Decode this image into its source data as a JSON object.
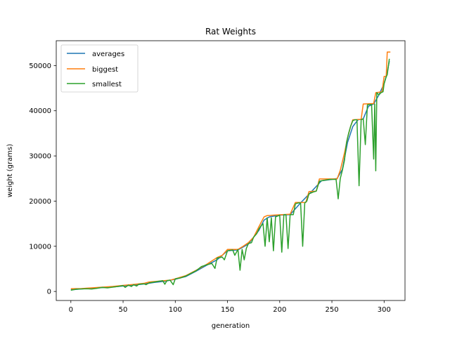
{
  "chart_data": {
    "type": "line",
    "title": "Rat Weights",
    "xlabel": "generation",
    "ylabel": "weight (grams)",
    "xlim": [
      -14,
      320
    ],
    "ylim": [
      -2000,
      55500
    ],
    "xticks": [
      0,
      50,
      100,
      150,
      200,
      250,
      300
    ],
    "yticks": [
      0,
      10000,
      20000,
      30000,
      40000,
      50000
    ],
    "legend": "top-left",
    "series": [
      {
        "name": "averages",
        "color": "#1f77b4",
        "points": [
          [
            0,
            350
          ],
          [
            10,
            560
          ],
          [
            20,
            700
          ],
          [
            30,
            850
          ],
          [
            40,
            1000
          ],
          [
            50,
            1200
          ],
          [
            60,
            1400
          ],
          [
            70,
            1650
          ],
          [
            80,
            2000
          ],
          [
            90,
            2250
          ],
          [
            100,
            2700
          ],
          [
            110,
            3300
          ],
          [
            120,
            4500
          ],
          [
            130,
            5800
          ],
          [
            140,
            7000
          ],
          [
            150,
            9000
          ],
          [
            160,
            9200
          ],
          [
            170,
            10500
          ],
          [
            180,
            13500
          ],
          [
            185,
            15800
          ],
          [
            190,
            16500
          ],
          [
            200,
            16900
          ],
          [
            210,
            17000
          ],
          [
            220,
            19600
          ],
          [
            230,
            22000
          ],
          [
            240,
            24500
          ],
          [
            250,
            24800
          ],
          [
            255,
            25000
          ],
          [
            260,
            27000
          ],
          [
            265,
            33000
          ],
          [
            270,
            36500
          ],
          [
            275,
            38000
          ],
          [
            280,
            38200
          ],
          [
            285,
            41000
          ],
          [
            290,
            41500
          ],
          [
            295,
            43500
          ],
          [
            300,
            46000
          ],
          [
            303,
            48500
          ],
          [
            305,
            51000
          ]
        ]
      },
      {
        "name": "biggest",
        "color": "#ff7f0e",
        "points": [
          [
            0,
            600
          ],
          [
            10,
            650
          ],
          [
            20,
            800
          ],
          [
            30,
            950
          ],
          [
            40,
            1100
          ],
          [
            50,
            1350
          ],
          [
            60,
            1550
          ],
          [
            70,
            1800
          ],
          [
            75,
            2100
          ],
          [
            85,
            2300
          ],
          [
            95,
            2500
          ],
          [
            100,
            2800
          ],
          [
            110,
            3500
          ],
          [
            120,
            4700
          ],
          [
            130,
            6000
          ],
          [
            140,
            7500
          ],
          [
            145,
            8000
          ],
          [
            150,
            9300
          ],
          [
            160,
            9300
          ],
          [
            165,
            10000
          ],
          [
            170,
            10800
          ],
          [
            175,
            12000
          ],
          [
            180,
            14300
          ],
          [
            185,
            16500
          ],
          [
            188,
            16800
          ],
          [
            195,
            16900
          ],
          [
            210,
            17100
          ],
          [
            215,
            19700
          ],
          [
            225,
            19700
          ],
          [
            228,
            22100
          ],
          [
            235,
            22200
          ],
          [
            238,
            24900
          ],
          [
            255,
            24900
          ],
          [
            258,
            26800
          ],
          [
            262,
            30600
          ],
          [
            265,
            34000
          ],
          [
            268,
            36600
          ],
          [
            270,
            38000
          ],
          [
            278,
            38100
          ],
          [
            280,
            41500
          ],
          [
            290,
            41600
          ],
          [
            292,
            44000
          ],
          [
            298,
            44200
          ],
          [
            300,
            47600
          ],
          [
            302,
            47600
          ],
          [
            303,
            53000
          ],
          [
            306,
            53000
          ]
        ]
      },
      {
        "name": "smallest",
        "color": "#2ca02c",
        "points": [
          [
            0,
            280
          ],
          [
            5,
            500
          ],
          [
            15,
            600
          ],
          [
            20,
            550
          ],
          [
            25,
            700
          ],
          [
            30,
            900
          ],
          [
            35,
            800
          ],
          [
            40,
            950
          ],
          [
            45,
            1100
          ],
          [
            50,
            1300
          ],
          [
            52,
            900
          ],
          [
            55,
            1400
          ],
          [
            58,
            1100
          ],
          [
            60,
            1500
          ],
          [
            63,
            1200
          ],
          [
            65,
            1600
          ],
          [
            70,
            1700
          ],
          [
            72,
            1500
          ],
          [
            75,
            1900
          ],
          [
            80,
            2100
          ],
          [
            85,
            2300
          ],
          [
            88,
            2400
          ],
          [
            90,
            1600
          ],
          [
            92,
            2400
          ],
          [
            95,
            2500
          ],
          [
            98,
            1500
          ],
          [
            100,
            2800
          ],
          [
            105,
            3000
          ],
          [
            110,
            3400
          ],
          [
            115,
            4000
          ],
          [
            120,
            4600
          ],
          [
            125,
            5500
          ],
          [
            130,
            5900
          ],
          [
            135,
            6200
          ],
          [
            138,
            5100
          ],
          [
            140,
            7400
          ],
          [
            145,
            7600
          ],
          [
            147,
            7000
          ],
          [
            150,
            9000
          ],
          [
            155,
            9200
          ],
          [
            157,
            8000
          ],
          [
            160,
            9300
          ],
          [
            162,
            4700
          ],
          [
            164,
            9300
          ],
          [
            166,
            7000
          ],
          [
            168,
            9500
          ],
          [
            170,
            10600
          ],
          [
            173,
            10800
          ],
          [
            175,
            12000
          ],
          [
            178,
            12800
          ],
          [
            180,
            13800
          ],
          [
            182,
            14500
          ],
          [
            184,
            15000
          ],
          [
            186,
            10000
          ],
          [
            188,
            16300
          ],
          [
            190,
            11000
          ],
          [
            192,
            16300
          ],
          [
            194,
            9000
          ],
          [
            196,
            16500
          ],
          [
            198,
            16700
          ],
          [
            200,
            16900
          ],
          [
            202,
            8700
          ],
          [
            204,
            17000
          ],
          [
            206,
            17000
          ],
          [
            208,
            9500
          ],
          [
            210,
            17000
          ],
          [
            213,
            17000
          ],
          [
            215,
            19400
          ],
          [
            218,
            19600
          ],
          [
            220,
            19600
          ],
          [
            222,
            10000
          ],
          [
            224,
            19600
          ],
          [
            226,
            20000
          ],
          [
            228,
            21600
          ],
          [
            232,
            22000
          ],
          [
            235,
            22200
          ],
          [
            238,
            24400
          ],
          [
            242,
            24600
          ],
          [
            245,
            24700
          ],
          [
            248,
            24800
          ],
          [
            250,
            24800
          ],
          [
            252,
            24800
          ],
          [
            254,
            24800
          ],
          [
            256,
            20500
          ],
          [
            258,
            25000
          ],
          [
            260,
            26800
          ],
          [
            262,
            29000
          ],
          [
            264,
            33000
          ],
          [
            266,
            35000
          ],
          [
            268,
            36600
          ],
          [
            270,
            37800
          ],
          [
            272,
            38000
          ],
          [
            274,
            38000
          ],
          [
            276,
            23400
          ],
          [
            278,
            38000
          ],
          [
            280,
            38200
          ],
          [
            282,
            32500
          ],
          [
            284,
            41300
          ],
          [
            286,
            41400
          ],
          [
            288,
            41400
          ],
          [
            290,
            29300
          ],
          [
            291,
            41500
          ],
          [
            292,
            26700
          ],
          [
            293,
            44000
          ],
          [
            295,
            43500
          ],
          [
            297,
            44000
          ],
          [
            299,
            44200
          ],
          [
            300,
            46000
          ],
          [
            302,
            47500
          ],
          [
            303,
            48000
          ],
          [
            305,
            51500
          ]
        ]
      }
    ]
  }
}
